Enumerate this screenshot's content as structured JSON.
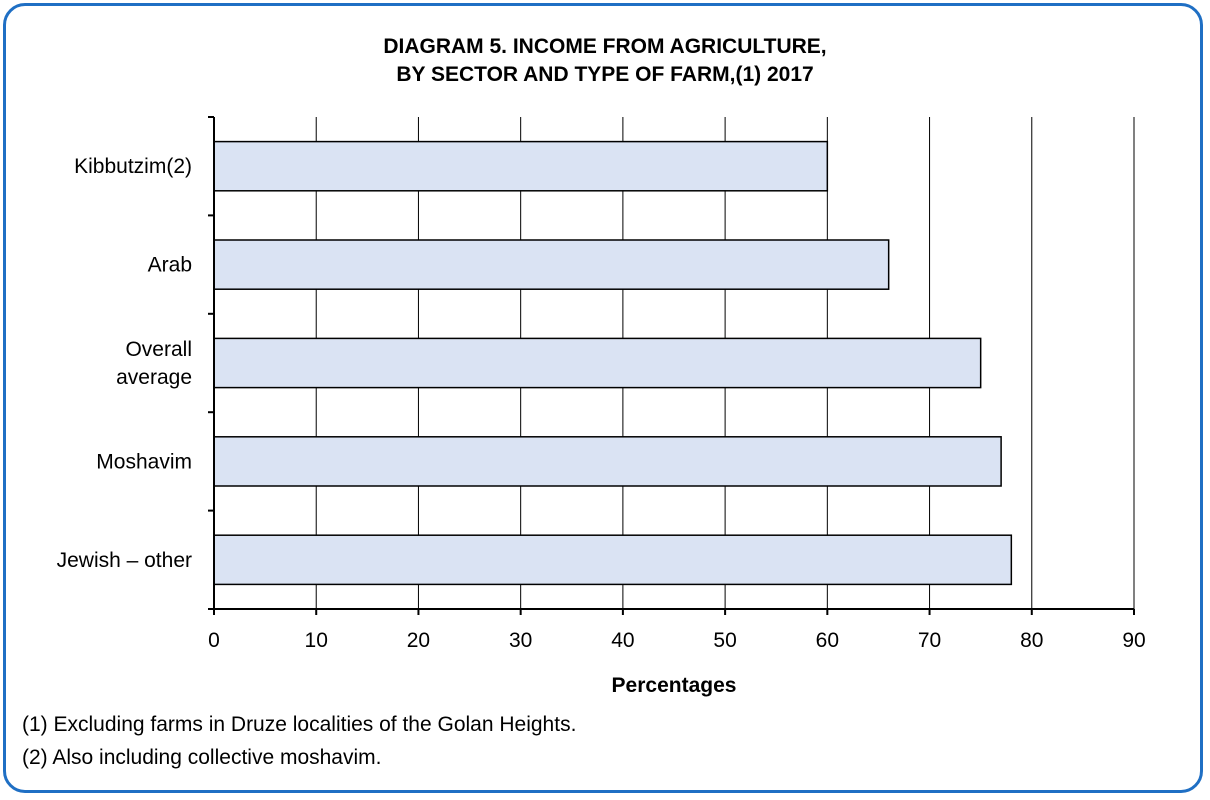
{
  "chart_data": {
    "type": "bar",
    "orientation": "horizontal",
    "title_lines": [
      "DIAGRAM 5. INCOME FROM AGRICULTURE,",
      "BY SECTOR AND TYPE OF FARM,(1) 2017"
    ],
    "categories": [
      [
        "Kibbutzim(2)"
      ],
      [
        "Arab"
      ],
      [
        "Overall",
        "average"
      ],
      [
        "Moshavim"
      ],
      [
        "Jewish – other"
      ]
    ],
    "values": [
      60,
      66,
      75,
      77,
      78
    ],
    "xlabel": "Percentages",
    "xlim": [
      0,
      90
    ],
    "xticks": [
      0,
      10,
      20,
      30,
      40,
      50,
      60,
      70,
      80,
      90
    ],
    "grid": "vertical",
    "bar_color": "#dae3f3",
    "bar_edge_color": "#000000"
  },
  "notes": [
    "(1) Excluding farms in Druze localities of the Golan Heights.",
    "(2) Also including collective moshavim."
  ],
  "frame_color": "#1f6fc4"
}
